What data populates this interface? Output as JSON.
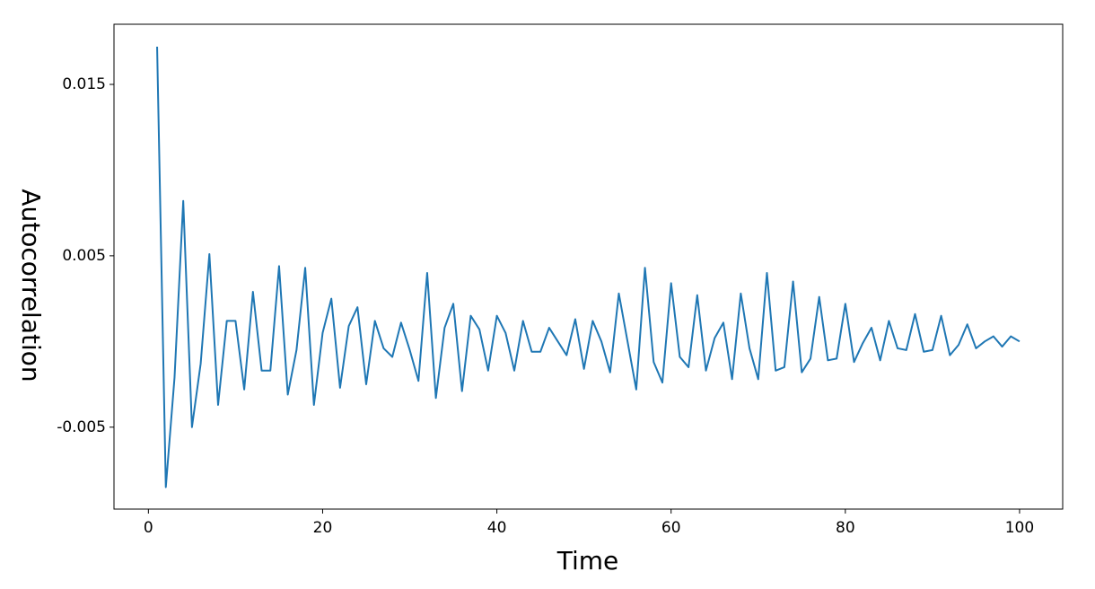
{
  "chart_data": {
    "type": "line",
    "x_label": "Time",
    "y_label": "Autocorrelation",
    "color": "#1f77b4",
    "x": [
      1,
      2,
      3,
      4,
      5,
      6,
      7,
      8,
      9,
      10,
      11,
      12,
      13,
      14,
      15,
      16,
      17,
      18,
      19,
      20,
      21,
      22,
      23,
      24,
      25,
      26,
      27,
      28,
      29,
      30,
      31,
      32,
      33,
      34,
      35,
      36,
      37,
      38,
      39,
      40,
      41,
      42,
      43,
      44,
      45,
      46,
      47,
      48,
      49,
      50,
      51,
      52,
      53,
      54,
      55,
      56,
      57,
      58,
      59,
      60,
      61,
      62,
      63,
      64,
      65,
      66,
      67,
      68,
      69,
      70,
      71,
      72,
      73,
      74,
      75,
      76,
      77,
      78,
      79,
      80,
      81,
      82,
      83,
      84,
      85,
      86,
      87,
      88,
      89,
      90,
      91,
      92,
      93,
      94,
      95,
      96,
      97,
      98,
      99,
      100
    ],
    "values": [
      0.0172,
      -0.0085,
      -0.0021,
      0.0082,
      -0.005,
      -0.0013,
      0.0051,
      -0.0037,
      0.0012,
      0.0012,
      -0.0028,
      0.0029,
      -0.0017,
      -0.0017,
      0.0044,
      -0.0031,
      -0.0005,
      0.0043,
      -0.0037,
      0.0005,
      0.0025,
      -0.0027,
      0.0009,
      0.002,
      -0.0025,
      0.0012,
      -0.0004,
      -0.0009,
      0.0011,
      -0.0005,
      -0.0023,
      0.004,
      -0.0033,
      0.0008,
      0.0022,
      -0.0029,
      0.0015,
      0.0007,
      -0.0017,
      0.0015,
      0.0005,
      -0.0017,
      0.0012,
      -0.0006,
      -0.0006,
      0.0008,
      0.0,
      -0.0008,
      0.0013,
      -0.0016,
      0.0012,
      0.0,
      -0.0018,
      0.0028,
      0.0,
      -0.0028,
      0.0043,
      -0.0012,
      -0.0024,
      0.0034,
      -0.0009,
      -0.0015,
      0.0027,
      -0.0017,
      0.0002,
      0.0011,
      -0.0022,
      0.0028,
      -0.0004,
      -0.0022,
      0.004,
      -0.0017,
      -0.0015,
      0.0035,
      -0.0018,
      -0.001,
      0.0026,
      -0.0011,
      -0.001,
      0.0022,
      -0.0012,
      -0.0001,
      0.0008,
      -0.0011,
      0.0012,
      -0.0004,
      -0.0005,
      0.0016,
      -0.0006,
      -0.0005,
      0.0015,
      -0.0008,
      -0.0002,
      0.001,
      -0.0004,
      0.0,
      0.0003,
      -0.0003,
      0.0003,
      0.0
    ],
    "xlim": [
      -3.95,
      104.95
    ],
    "ylim": [
      -0.00978,
      0.01851
    ],
    "xticks": [
      0,
      20,
      40,
      60,
      80,
      100
    ],
    "yticks": [
      -0.005,
      0.005,
      0.015
    ]
  }
}
